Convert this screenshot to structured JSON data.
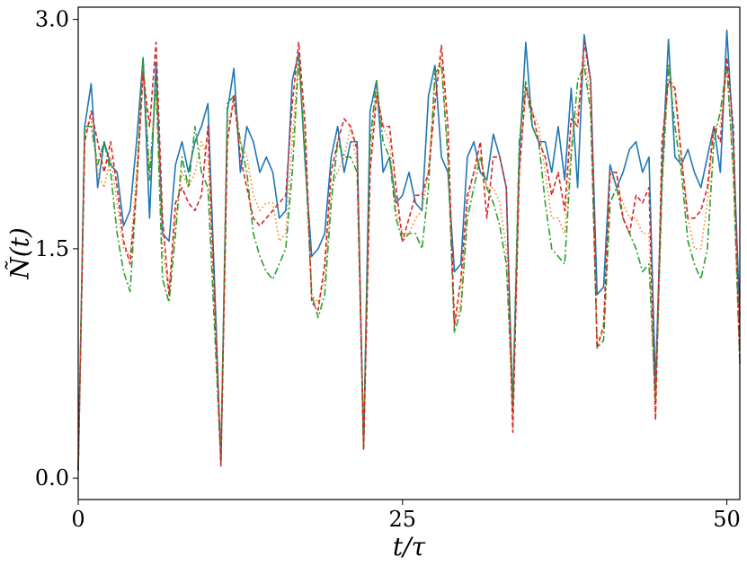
{
  "chart_data": {
    "type": "line",
    "title": "",
    "xlabel": "t/τ",
    "ylabel": "Ñ(t)",
    "xlim": [
      0,
      51
    ],
    "ylim": [
      -0.14,
      3.08
    ],
    "x_ticks": [
      {
        "value": 0,
        "label": "0"
      },
      {
        "value": 25,
        "label": "25"
      },
      {
        "value": 50,
        "label": "50"
      }
    ],
    "y_ticks": [
      {
        "value": 0,
        "label": "0.0"
      },
      {
        "value": 1.5,
        "label": "1.5"
      },
      {
        "value": 3,
        "label": "3.0"
      }
    ],
    "grid": false,
    "legend": "none",
    "series": [
      {
        "color": "#1f77b4",
        "style": "solid",
        "x": [
          0,
          0.5,
          1,
          1.5,
          2,
          2.5,
          3,
          3.5,
          4,
          4.5,
          5,
          5.5,
          6,
          6.5,
          7,
          7.5,
          8,
          8.5,
          9,
          9.5,
          10,
          10.5,
          11,
          11.5,
          12,
          12.5,
          13,
          13.5,
          14,
          14.5,
          15,
          15.5,
          16,
          16.5,
          17,
          17.5,
          18,
          18.5,
          19,
          19.5,
          20,
          20.5,
          21,
          21.5,
          22,
          22.5,
          23,
          23.5,
          24,
          24.5,
          25,
          25.5,
          26,
          26.5,
          27,
          27.5,
          28,
          28.5,
          29,
          29.5,
          30,
          30.5,
          31,
          31.5,
          32,
          32.5,
          33,
          33.5,
          34,
          34.5,
          35,
          35.5,
          36,
          36.5,
          37,
          37.5,
          38,
          38.5,
          39,
          39.5,
          40,
          40.5,
          41,
          41.5,
          42,
          42.5,
          43,
          43.5,
          44,
          44.5,
          45,
          45.5,
          46,
          46.5,
          47,
          47.5,
          48,
          48.5,
          49,
          49.5,
          50,
          50.5,
          51
        ],
        "values": [
          0.05,
          2.3,
          2.58,
          1.9,
          2.2,
          2.05,
          2.0,
          1.65,
          1.75,
          2.2,
          2.75,
          1.7,
          2.72,
          1.6,
          1.55,
          2.05,
          2.2,
          2.0,
          2.2,
          2.3,
          2.45,
          1.3,
          0.1,
          2.4,
          2.68,
          2.0,
          2.3,
          2.2,
          2.0,
          2.1,
          2.0,
          1.7,
          1.75,
          2.6,
          2.78,
          2.05,
          1.45,
          1.5,
          1.6,
          2.1,
          2.3,
          2.0,
          2.2,
          2.2,
          0.2,
          2.4,
          2.6,
          2.0,
          2.1,
          1.8,
          1.85,
          2.0,
          1.8,
          1.75,
          2.5,
          2.7,
          2.1,
          2.0,
          1.35,
          1.4,
          2.1,
          2.2,
          2.0,
          1.95,
          2.25,
          2.1,
          1.9,
          0.45,
          2.1,
          2.85,
          2.3,
          2.2,
          2.2,
          2.0,
          2.3,
          1.95,
          2.55,
          1.9,
          2.9,
          2.6,
          1.2,
          1.25,
          2.05,
          1.9,
          2.0,
          2.15,
          2.2,
          2.0,
          2.1,
          0.6,
          2.0,
          2.87,
          2.1,
          2.05,
          2.15,
          2.0,
          1.9,
          2.1,
          2.3,
          2.0,
          2.93,
          2.2,
          1.05
        ]
      },
      {
        "color": "#ff7f0e",
        "style": "dotted",
        "x": [
          0,
          0.5,
          1,
          1.5,
          2,
          2.5,
          3,
          3.5,
          4,
          4.5,
          5,
          5.5,
          6,
          6.5,
          7,
          7.5,
          8,
          8.5,
          9,
          9.5,
          10,
          10.5,
          11,
          11.5,
          12,
          12.5,
          13,
          13.5,
          14,
          14.5,
          15,
          15.5,
          16,
          16.5,
          17,
          17.5,
          18,
          18.5,
          19,
          19.5,
          20,
          20.5,
          21,
          21.5,
          22,
          22.5,
          23,
          23.5,
          24,
          24.5,
          25,
          25.5,
          26,
          26.5,
          27,
          27.5,
          28,
          28.5,
          29,
          29.5,
          30,
          30.5,
          31,
          31.5,
          32,
          32.5,
          33,
          33.5,
          34,
          34.5,
          35,
          35.5,
          36,
          36.5,
          37,
          37.5,
          38,
          38.5,
          39,
          39.5,
          40,
          40.5,
          41,
          41.5,
          42,
          42.5,
          43,
          43.5,
          44,
          44.5,
          45,
          45.5,
          46,
          46.5,
          47,
          47.5,
          48,
          48.5,
          49,
          49.5,
          50,
          50.5,
          51
        ],
        "values": [
          0.05,
          2.25,
          2.35,
          2.0,
          1.9,
          2.1,
          1.8,
          1.5,
          1.45,
          2.0,
          2.7,
          2.0,
          2.55,
          1.5,
          1.2,
          1.7,
          2.0,
          1.9,
          2.0,
          2.2,
          2.1,
          1.1,
          0.12,
          2.3,
          2.45,
          2.2,
          2.1,
          1.85,
          1.75,
          1.8,
          1.8,
          1.55,
          1.6,
          2.2,
          2.76,
          2.2,
          1.2,
          1.15,
          1.3,
          1.9,
          2.0,
          2.1,
          2.3,
          2.05,
          0.22,
          2.1,
          2.55,
          2.3,
          2.2,
          1.75,
          1.6,
          1.6,
          1.7,
          1.75,
          2.0,
          2.6,
          2.75,
          2.1,
          1.0,
          1.15,
          1.8,
          2.0,
          2.1,
          1.9,
          1.9,
          1.8,
          1.5,
          0.35,
          2.0,
          2.55,
          2.4,
          2.3,
          2.0,
          1.7,
          1.7,
          1.6,
          2.2,
          2.4,
          2.75,
          2.5,
          0.9,
          0.95,
          2.0,
          1.9,
          1.8,
          1.7,
          1.7,
          1.6,
          1.6,
          0.4,
          1.9,
          2.7,
          2.5,
          2.1,
          1.7,
          1.5,
          1.5,
          1.8,
          2.3,
          2.3,
          2.7,
          2.0,
          0.8
        ]
      },
      {
        "color": "#2ca02c",
        "style": "dashdot",
        "x": [
          0,
          0.5,
          1,
          1.5,
          2,
          2.5,
          3,
          3.5,
          4,
          4.5,
          5,
          5.5,
          6,
          6.5,
          7,
          7.5,
          8,
          8.5,
          9,
          9.5,
          10,
          10.5,
          11,
          11.5,
          12,
          12.5,
          13,
          13.5,
          14,
          14.5,
          15,
          15.5,
          16,
          16.5,
          17,
          17.5,
          18,
          18.5,
          19,
          19.5,
          20,
          20.5,
          21,
          21.5,
          22,
          22.5,
          23,
          23.5,
          24,
          24.5,
          25,
          25.5,
          26,
          26.5,
          27,
          27.5,
          28,
          28.5,
          29,
          29.5,
          30,
          30.5,
          31,
          31.5,
          32,
          32.5,
          33,
          33.5,
          34,
          34.5,
          35,
          35.5,
          36,
          36.5,
          37,
          37.5,
          38,
          38.5,
          39,
          39.5,
          40,
          40.5,
          41,
          41.5,
          42,
          42.5,
          43,
          43.5,
          44,
          44.5,
          45,
          45.5,
          46,
          46.5,
          47,
          47.5,
          48,
          48.5,
          49,
          49.5,
          50,
          50.5,
          51
        ],
        "values": [
          0.05,
          2.3,
          2.3,
          2.05,
          2.2,
          2.0,
          1.6,
          1.35,
          1.22,
          1.9,
          2.75,
          1.95,
          2.6,
          1.3,
          1.15,
          1.6,
          2.1,
          1.9,
          2.3,
          2.0,
          1.9,
          1.0,
          0.1,
          2.45,
          2.5,
          2.2,
          2.0,
          1.6,
          1.45,
          1.35,
          1.3,
          1.4,
          1.5,
          2.0,
          2.75,
          2.1,
          1.2,
          1.05,
          1.2,
          1.8,
          2.2,
          2.1,
          2.1,
          2.0,
          0.2,
          2.2,
          2.6,
          2.2,
          2.1,
          1.7,
          1.55,
          1.6,
          1.6,
          1.5,
          1.9,
          2.65,
          2.7,
          2.1,
          0.95,
          1.1,
          1.7,
          1.9,
          2.1,
          1.9,
          1.8,
          1.65,
          1.4,
          0.5,
          2.2,
          2.6,
          2.3,
          2.2,
          1.8,
          1.5,
          1.45,
          1.4,
          2.1,
          2.6,
          2.7,
          2.4,
          0.85,
          0.9,
          1.8,
          1.9,
          1.7,
          1.6,
          1.5,
          1.35,
          1.4,
          0.5,
          1.9,
          2.7,
          2.3,
          2.0,
          1.55,
          1.4,
          1.3,
          1.5,
          2.2,
          2.4,
          2.7,
          2.0,
          0.75
        ]
      },
      {
        "color": "#d62728",
        "style": "dashed",
        "x": [
          0,
          0.5,
          1,
          1.5,
          2,
          2.5,
          3,
          3.5,
          4,
          4.5,
          5,
          5.5,
          6,
          6.5,
          7,
          7.5,
          8,
          8.5,
          9,
          9.5,
          10,
          10.5,
          11,
          11.5,
          12,
          12.5,
          13,
          13.5,
          14,
          14.5,
          15,
          15.5,
          16,
          16.5,
          17,
          17.5,
          18,
          18.5,
          19,
          19.5,
          20,
          20.5,
          21,
          21.5,
          22,
          22.5,
          23,
          23.5,
          24,
          24.5,
          25,
          25.5,
          26,
          26.5,
          27,
          27.5,
          28,
          28.5,
          29,
          29.5,
          30,
          30.5,
          31,
          31.5,
          32,
          32.5,
          33,
          33.5,
          34,
          34.5,
          35,
          35.5,
          36,
          36.5,
          37,
          37.5,
          38,
          38.5,
          39,
          39.5,
          40,
          40.5,
          41,
          41.5,
          42,
          42.5,
          43,
          43.5,
          44,
          44.5,
          45,
          45.5,
          46,
          46.5,
          47,
          47.5,
          48,
          48.5,
          49,
          49.5,
          50,
          50.5,
          51
        ],
        "values": [
          0.05,
          2.2,
          2.4,
          2.2,
          2.0,
          2.2,
          1.9,
          1.55,
          1.4,
          1.9,
          2.65,
          2.3,
          2.85,
          1.7,
          1.2,
          1.8,
          1.9,
          1.8,
          1.75,
          1.85,
          2.3,
          1.2,
          0.08,
          2.2,
          2.5,
          2.1,
          1.9,
          1.7,
          1.65,
          1.7,
          1.75,
          1.8,
          1.85,
          2.45,
          2.85,
          2.3,
          1.15,
          1.1,
          1.4,
          2.0,
          2.2,
          2.35,
          2.3,
          2.15,
          0.18,
          2.0,
          2.5,
          2.3,
          2.3,
          1.9,
          1.55,
          1.7,
          1.85,
          1.85,
          2.0,
          2.45,
          2.83,
          2.3,
          1.0,
          1.3,
          1.85,
          2.0,
          2.2,
          1.7,
          2.1,
          2.1,
          1.9,
          0.3,
          2.0,
          2.55,
          2.4,
          2.2,
          2.1,
          1.85,
          2.0,
          1.75,
          2.35,
          2.3,
          2.85,
          2.6,
          0.85,
          1.0,
          2.0,
          2.0,
          1.7,
          1.6,
          1.85,
          1.8,
          1.9,
          0.38,
          2.2,
          2.6,
          2.55,
          2.1,
          1.7,
          1.7,
          1.75,
          1.9,
          2.3,
          2.2,
          2.75,
          2.3,
          0.75
        ]
      }
    ]
  }
}
